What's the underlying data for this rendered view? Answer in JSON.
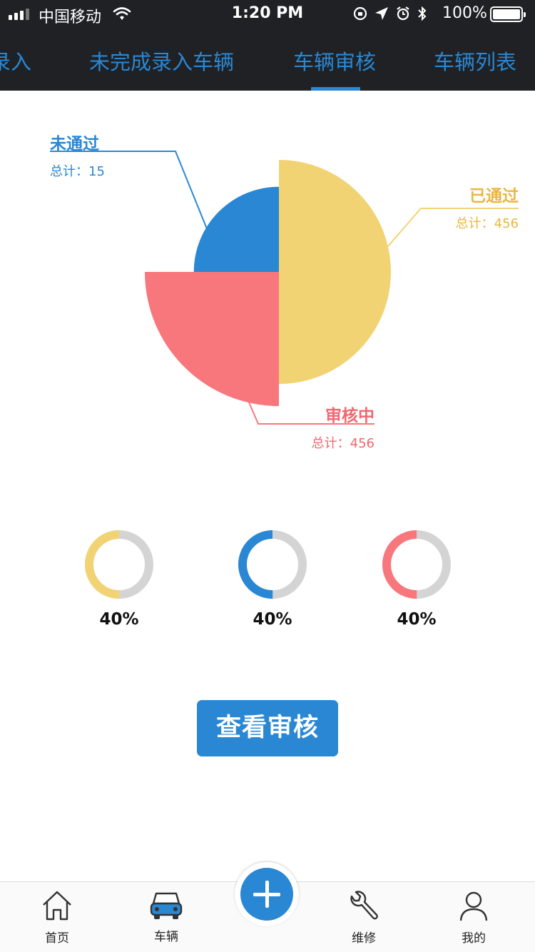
{
  "status_bar": {
    "carrier": "中国移动",
    "time": "1:20 PM",
    "battery": "100%"
  },
  "tabs": [
    {
      "label": "录入"
    },
    {
      "label": "未完成录入车辆"
    },
    {
      "label": "车辆审核",
      "selected": true
    },
    {
      "label": "车辆列表"
    }
  ],
  "chart_data": {
    "type": "pie",
    "series": [
      {
        "name": "已通过",
        "total_label": "总计：456",
        "value": 456,
        "color": "#f2d374"
      },
      {
        "name": "审核中",
        "total_label": "总计：456",
        "value": 456,
        "color": "#f7777c"
      },
      {
        "name": "未通过",
        "total_label": "总计：15",
        "value": 15,
        "color": "#2a87d3"
      }
    ]
  },
  "progress": [
    {
      "label": "40%",
      "value": 0.4,
      "color": "#f2d374"
    },
    {
      "label": "40%",
      "value": 0.4,
      "color": "#2a87d3"
    },
    {
      "label": "40%",
      "value": 0.4,
      "color": "#f7777c"
    }
  ],
  "action_button": "查看审核",
  "bottom_nav": {
    "home": "首页",
    "vehicles": "车辆",
    "add": "add-icon",
    "repair": "维修",
    "mine": "我的"
  },
  "colors": {
    "accent": "#2a87d3",
    "topbar": "#1f2124",
    "ring_track": "#d4d4d4"
  }
}
